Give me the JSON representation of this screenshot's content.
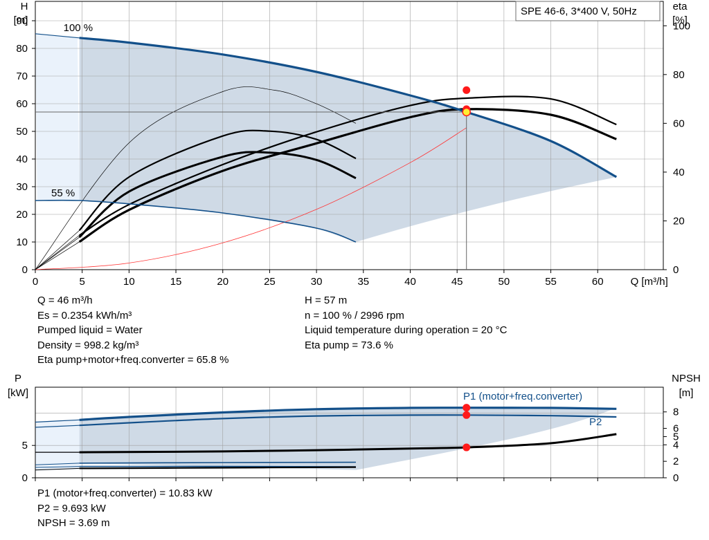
{
  "colors": {
    "axis": "#000000",
    "grid": "#a0a0a0",
    "curve_blue": "#13508a",
    "fill_region": "#cfdae6",
    "fill_light": "#eaf2fb",
    "curve_black": "#000000",
    "system_curve": "#ff3333",
    "op_point": "#ff1a1a",
    "op_point_main": "#ffee33"
  },
  "info_main": {
    "left": [
      "Q = 46 m³/h",
      "Es = 0.2354 kWh/m³",
      "Pumped liquid = Water",
      "Density = 998.2 kg/m³",
      "Eta pump+motor+freq.converter = 65.8 %"
    ],
    "right": [
      "H = 57 m",
      "n = 100 % / 2996 rpm",
      "Liquid temperature during operation = 20 °C",
      "Eta pump = 73.6 %"
    ]
  },
  "info_power": [
    "P1 (motor+freq.converter) = 10.83 kW",
    "P2 = 9.693 kW",
    "NPSH = 3.69 m"
  ],
  "chart_data": [
    {
      "type": "line",
      "title": "SPE 46-6, 3*400 V, 50Hz",
      "ylabel_left": [
        "H",
        "[m]"
      ],
      "ylabel_right": [
        "eta",
        "[%]"
      ],
      "xlabel": "Q [m³/h]",
      "xlim": [
        0,
        67
      ],
      "ylim_left": [
        0,
        97
      ],
      "ylim_right": [
        0,
        110
      ],
      "xticks": [
        "0",
        "5",
        "10",
        "15",
        "20",
        "25",
        "30",
        "35",
        "40",
        "45",
        "50",
        "55",
        "60"
      ],
      "yticks_left": [
        "0",
        "10",
        "20",
        "30",
        "40",
        "50",
        "60",
        "70",
        "80",
        "90"
      ],
      "yticks_right": [
        "0",
        "20",
        "40",
        "60",
        "80",
        "100"
      ],
      "grid": true,
      "speed_labels": [
        "100 %",
        "55 %"
      ],
      "head_100": {
        "x": [
          0,
          4.7,
          10,
          20,
          30,
          40,
          46,
          55,
          62
        ],
        "y": [
          85.3,
          83.8,
          82.1,
          77.8,
          71.5,
          63.0,
          57.0,
          46.5,
          33.5
        ]
      },
      "head_55": {
        "x": [
          0,
          4.7,
          10,
          20,
          30,
          34.2
        ],
        "y": [
          25.0,
          25.0,
          23.8,
          20.5,
          15.0,
          10.0
        ]
      },
      "eta_curves": [
        {
          "x": [
            4.7,
            10,
            20,
            30,
            40,
            46,
            55,
            62
          ],
          "y": [
            14.1,
            26.7,
            43.1,
            56.5,
            67.3,
            70.3,
            70.0,
            59.5
          ]
        },
        {
          "x": [
            4.7,
            10,
            20,
            30,
            40,
            46,
            55,
            62
          ],
          "y": [
            11.4,
            24.5,
            40.5,
            51.8,
            62.5,
            65.8,
            63.5,
            53.5
          ]
        },
        {
          "x": [
            4.7,
            10,
            20,
            25,
            30,
            34.2
          ],
          "y": [
            16.1,
            38.0,
            54.8,
            56.8,
            53.4,
            45.6
          ]
        },
        {
          "x": [
            4.7,
            10,
            20,
            25,
            30,
            34.2
          ],
          "y": [
            13.3,
            32.0,
            46.3,
            48.0,
            45.0,
            37.5
          ]
        }
      ],
      "eta_best": {
        "x": [
          0,
          10,
          20,
          25.5,
          30,
          34.2
        ],
        "y": [
          0,
          52.0,
          73.0,
          73.6,
          68.0,
          60.0
        ]
      },
      "system_curve": {
        "x": [
          0,
          10,
          20,
          30,
          40,
          46
        ],
        "y": [
          0,
          2.4,
          9.7,
          21.8,
          38.7,
          51.3
        ],
        "unit": "m"
      },
      "operating_point": {
        "Q": 46,
        "H": 57,
        "eta_pump": 73.6,
        "eta_total": 65.8
      }
    },
    {
      "type": "line",
      "ylabel_left": [
        "P",
        "[kW]"
      ],
      "ylabel_right": [
        "NPSH",
        "[m]"
      ],
      "yticks_left": [
        "0",
        "5"
      ],
      "yticks_right": [
        "0",
        "2",
        "4",
        "5",
        "6",
        "8"
      ],
      "xlim": [
        0,
        67
      ],
      "ylim_left": [
        0,
        14
      ],
      "ylim_right": [
        0,
        11
      ],
      "grid": true,
      "series": [
        {
          "name": "P1 (motor+freq.converter)",
          "x": [
            0,
            4.7,
            10,
            20,
            30,
            40,
            46,
            55,
            62
          ],
          "y": [
            8.6,
            8.95,
            9.4,
            10.1,
            10.6,
            10.8,
            10.83,
            10.8,
            10.65
          ]
        },
        {
          "name": "P2",
          "x": [
            0,
            4.7,
            10,
            20,
            30,
            40,
            46,
            55,
            62
          ],
          "y": [
            7.8,
            8.1,
            8.5,
            9.15,
            9.55,
            9.68,
            9.69,
            9.6,
            9.4
          ]
        }
      ],
      "p_55": [
        {
          "x": [
            0,
            4.7,
            20,
            34.2
          ],
          "y": [
            2.0,
            2.25,
            2.35,
            2.4
          ]
        },
        {
          "x": [
            0,
            4.7,
            20,
            34.2
          ],
          "y": [
            1.6,
            1.75,
            1.75,
            1.7
          ]
        },
        {
          "x": [
            0,
            4.7,
            20,
            34.2
          ],
          "y": [
            1.2,
            1.45,
            1.55,
            1.65
          ]
        }
      ],
      "npsh": {
        "x": [
          0,
          4.7,
          20,
          30,
          40,
          46,
          55,
          62
        ],
        "y": [
          3.1,
          3.1,
          3.2,
          3.35,
          3.55,
          3.69,
          4.2,
          5.3
        ]
      },
      "operating_point": {
        "P1": 10.83,
        "P2": 9.693,
        "NPSH": 3.69
      }
    }
  ]
}
